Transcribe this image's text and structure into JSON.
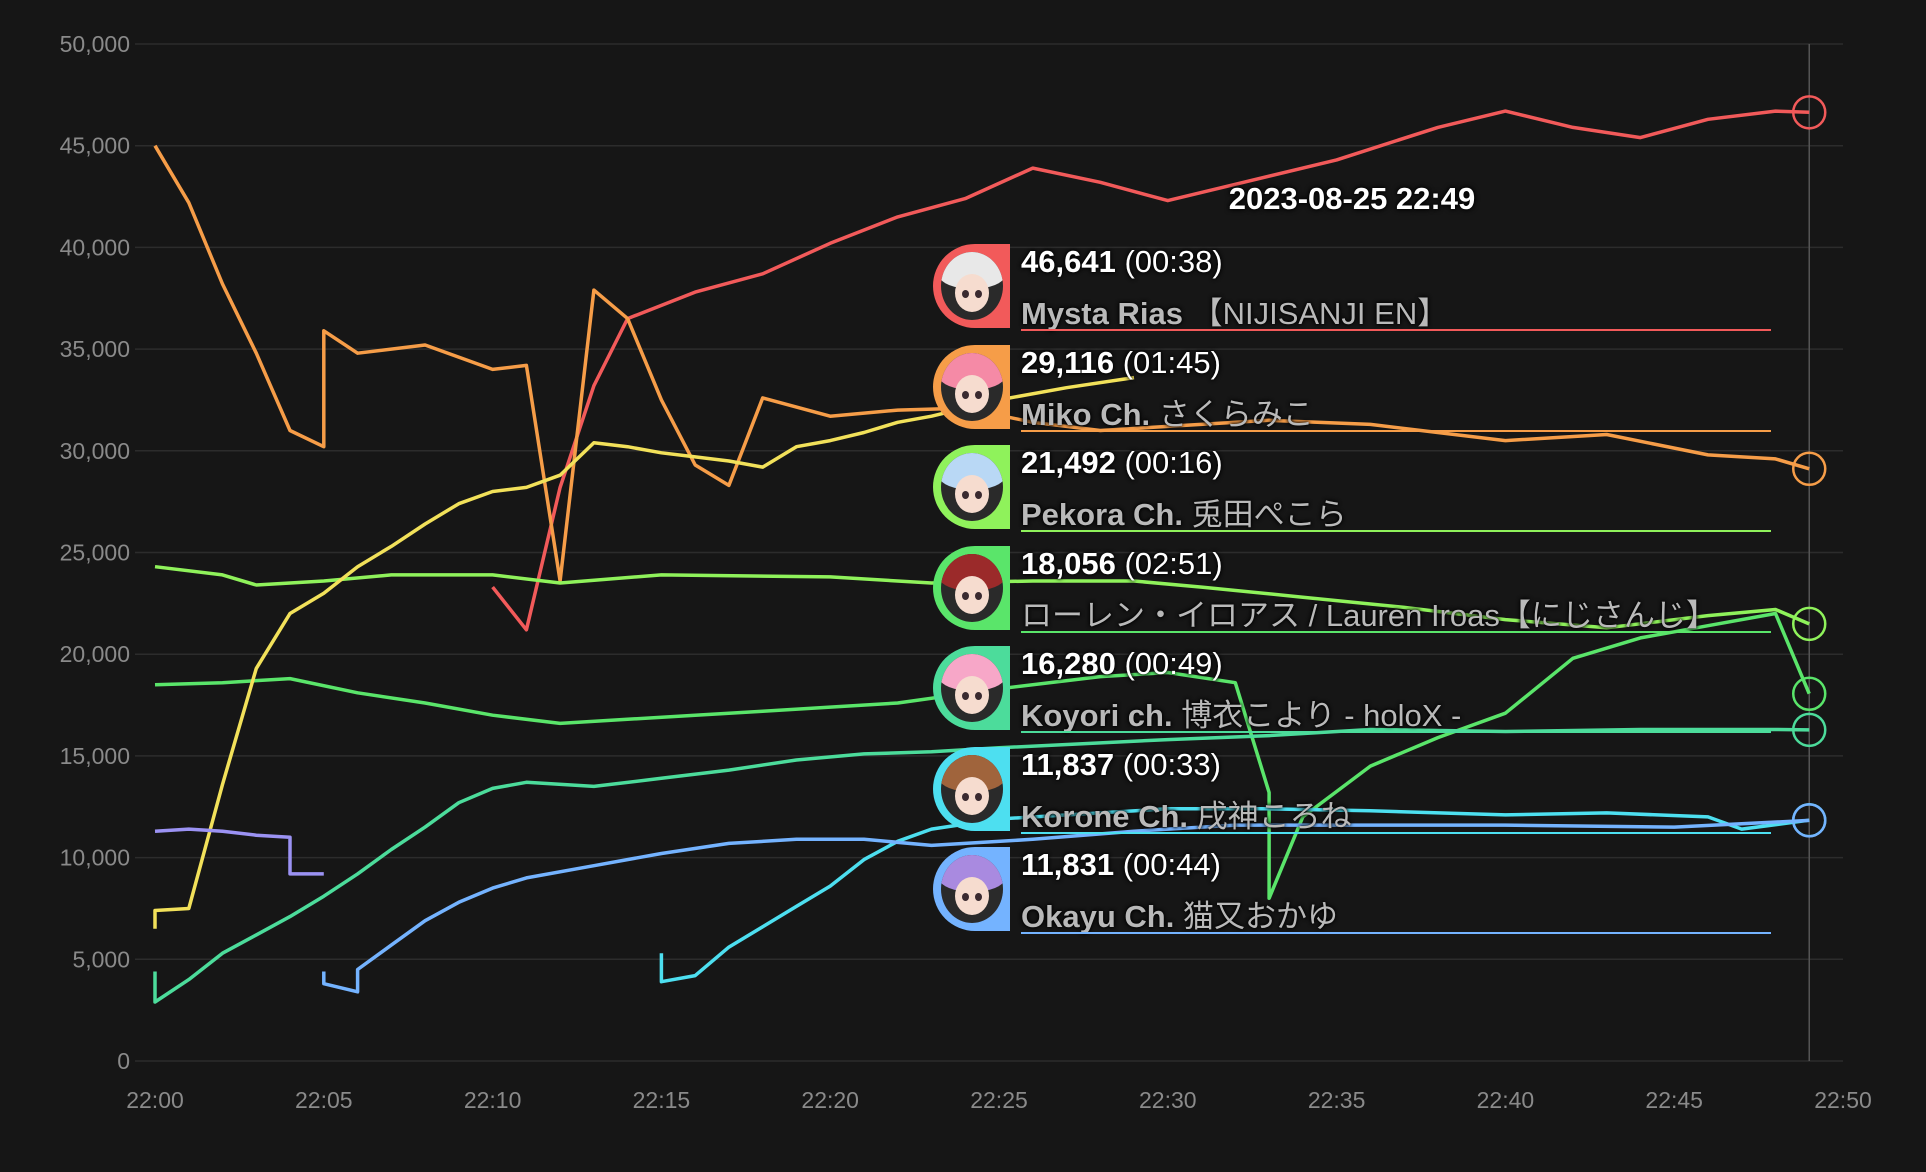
{
  "chart_data": {
    "type": "line",
    "title": "",
    "xlabel": "",
    "ylabel": "",
    "x_ticks": [
      "22:00",
      "22:05",
      "22:10",
      "22:15",
      "22:20",
      "22:25",
      "22:30",
      "22:35",
      "22:40",
      "22:45",
      "22:50"
    ],
    "xlim": [
      "22:00",
      "22:50"
    ],
    "y_ticks": [
      "0",
      "5,000",
      "10,000",
      "15,000",
      "20,000",
      "25,000",
      "30,000",
      "35,000",
      "40,000",
      "45,000",
      "50,000"
    ],
    "ylim": [
      0,
      50000
    ],
    "grid": true,
    "cursor_time": "22:49",
    "series": [
      {
        "name": "Mysta Rias 【NIJISANJI EN】",
        "color": "#f25a5a",
        "points": [
          [
            "22:10",
            23300
          ],
          [
            "22:11",
            21200
          ],
          [
            "22:12",
            28200
          ],
          [
            "22:13",
            33200
          ],
          [
            "22:14",
            36500
          ],
          [
            "22:16",
            37800
          ],
          [
            "22:18",
            38700
          ],
          [
            "22:20",
            40200
          ],
          [
            "22:22",
            41500
          ],
          [
            "22:24",
            42400
          ],
          [
            "22:26",
            43900
          ],
          [
            "22:28",
            43200
          ],
          [
            "22:30",
            42300
          ],
          [
            "22:32",
            43100
          ],
          [
            "22:35",
            44300
          ],
          [
            "22:38",
            45900
          ],
          [
            "22:40",
            46700
          ],
          [
            "22:42",
            45900
          ],
          [
            "22:44",
            45400
          ],
          [
            "22:46",
            46300
          ],
          [
            "22:48",
            46700
          ],
          [
            "22:49",
            46641
          ]
        ]
      },
      {
        "name": "Miko Ch. さくらみこ",
        "color": "#f69d48",
        "points": [
          [
            "22:00",
            45000
          ],
          [
            "22:01",
            42200
          ],
          [
            "22:02",
            38200
          ],
          [
            "22:03",
            34800
          ],
          [
            "22:04",
            31000
          ],
          [
            "22:05",
            30200
          ],
          [
            "22:05",
            35900
          ],
          [
            "22:06",
            34800
          ],
          [
            "22:08",
            35200
          ],
          [
            "22:10",
            34000
          ],
          [
            "22:11",
            34200
          ],
          [
            "22:12",
            23600
          ],
          [
            "22:13",
            37900
          ],
          [
            "22:14",
            36500
          ],
          [
            "22:15",
            32500
          ],
          [
            "22:16",
            29300
          ],
          [
            "22:17",
            28300
          ],
          [
            "22:18",
            32600
          ],
          [
            "22:20",
            31700
          ],
          [
            "22:22",
            32000
          ],
          [
            "22:24",
            32100
          ],
          [
            "22:26",
            31400
          ],
          [
            "22:28",
            31000
          ],
          [
            "22:30",
            31200
          ],
          [
            "22:33",
            31500
          ],
          [
            "22:36",
            31300
          ],
          [
            "22:40",
            30500
          ],
          [
            "22:43",
            30800
          ],
          [
            "22:46",
            29800
          ],
          [
            "22:48",
            29600
          ],
          [
            "22:49",
            29116
          ]
        ]
      },
      {
        "name": "Pekora Ch. 兎田ぺこら",
        "color": "#8ff25b",
        "points": [
          [
            "22:00",
            24300
          ],
          [
            "22:02",
            23900
          ],
          [
            "22:03",
            23400
          ],
          [
            "22:05",
            23600
          ],
          [
            "22:07",
            23900
          ],
          [
            "22:10",
            23900
          ],
          [
            "22:12",
            23500
          ],
          [
            "22:15",
            23900
          ],
          [
            "22:20",
            23800
          ],
          [
            "22:23",
            23500
          ],
          [
            "22:26",
            23600
          ],
          [
            "22:29",
            23600
          ],
          [
            "22:31",
            23300
          ],
          [
            "22:34",
            22800
          ],
          [
            "22:37",
            22300
          ],
          [
            "22:40",
            21700
          ],
          [
            "22:43",
            21300
          ],
          [
            "22:46",
            21900
          ],
          [
            "22:48",
            22200
          ],
          [
            "22:49",
            21492
          ]
        ]
      },
      {
        "name": "ローレン・イロアス / Lauren Iroas【にじさんじ】",
        "color": "#5ae56a",
        "points": [
          [
            "22:00",
            18500
          ],
          [
            "22:02",
            18600
          ],
          [
            "22:04",
            18800
          ],
          [
            "22:06",
            18100
          ],
          [
            "22:08",
            17600
          ],
          [
            "22:10",
            17000
          ],
          [
            "22:12",
            16600
          ],
          [
            "22:14",
            16800
          ],
          [
            "22:16",
            17000
          ],
          [
            "22:18",
            17200
          ],
          [
            "22:20",
            17400
          ],
          [
            "22:22",
            17600
          ],
          [
            "22:25",
            18300
          ],
          [
            "22:28",
            18900
          ],
          [
            "22:30",
            19100
          ],
          [
            "22:32",
            18600
          ],
          [
            "22:33",
            13200
          ],
          [
            "22:33",
            8000
          ],
          [
            "22:34",
            12000
          ],
          [
            "22:36",
            14500
          ],
          [
            "22:38",
            15900
          ],
          [
            "22:40",
            17100
          ],
          [
            "22:42",
            19800
          ],
          [
            "22:44",
            20800
          ],
          [
            "22:46",
            21400
          ],
          [
            "22:48",
            22000
          ],
          [
            "22:49",
            18056
          ]
        ]
      },
      {
        "name": "Koyori ch. 博衣こより - holoX -",
        "color": "#4cdc9b",
        "points": [
          [
            "22:00",
            4400
          ],
          [
            "22:00",
            2900
          ],
          [
            "22:01",
            4000
          ],
          [
            "22:02",
            5300
          ],
          [
            "22:03",
            6200
          ],
          [
            "22:04",
            7100
          ],
          [
            "22:05",
            8100
          ],
          [
            "22:06",
            9200
          ],
          [
            "22:07",
            10400
          ],
          [
            "22:08",
            11500
          ],
          [
            "22:09",
            12700
          ],
          [
            "22:10",
            13400
          ],
          [
            "22:11",
            13700
          ],
          [
            "22:13",
            13500
          ],
          [
            "22:15",
            13900
          ],
          [
            "22:17",
            14300
          ],
          [
            "22:19",
            14800
          ],
          [
            "22:21",
            15100
          ],
          [
            "22:23",
            15200
          ],
          [
            "22:25",
            15400
          ],
          [
            "22:30",
            15800
          ],
          [
            "22:33",
            16000
          ],
          [
            "22:36",
            16300
          ],
          [
            "22:40",
            16200
          ],
          [
            "22:44",
            16300
          ],
          [
            "22:48",
            16300
          ],
          [
            "22:49",
            16280
          ]
        ]
      },
      {
        "name": "Korone Ch. 戌神ころね",
        "color": "#4ddff0",
        "points": [
          [
            "22:15",
            5300
          ],
          [
            "22:15",
            3900
          ],
          [
            "22:16",
            4200
          ],
          [
            "22:17",
            5600
          ],
          [
            "22:18",
            6600
          ],
          [
            "22:19",
            7600
          ],
          [
            "22:20",
            8600
          ],
          [
            "22:21",
            9900
          ],
          [
            "22:22",
            10800
          ],
          [
            "22:23",
            11400
          ],
          [
            "22:25",
            11900
          ],
          [
            "22:28",
            12200
          ],
          [
            "22:30",
            12400
          ],
          [
            "22:33",
            12400
          ],
          [
            "22:36",
            12300
          ],
          [
            "22:40",
            12100
          ],
          [
            "22:43",
            12200
          ],
          [
            "22:46",
            12000
          ],
          [
            "22:47",
            11400
          ],
          [
            "22:49",
            11837
          ]
        ]
      },
      {
        "name": "Okayu Ch. 猫又おかゆ",
        "color": "#74b3ff",
        "points": [
          [
            "22:05",
            4400
          ],
          [
            "22:05",
            3800
          ],
          [
            "22:06",
            3400
          ],
          [
            "22:06",
            4500
          ],
          [
            "22:07",
            5700
          ],
          [
            "22:08",
            6900
          ],
          [
            "22:09",
            7800
          ],
          [
            "22:10",
            8500
          ],
          [
            "22:11",
            9000
          ],
          [
            "22:13",
            9600
          ],
          [
            "22:15",
            10200
          ],
          [
            "22:17",
            10700
          ],
          [
            "22:19",
            10900
          ],
          [
            "22:21",
            10900
          ],
          [
            "22:23",
            10600
          ],
          [
            "22:26",
            10900
          ],
          [
            "22:29",
            11300
          ],
          [
            "22:32",
            11600
          ],
          [
            "22:35",
            11600
          ],
          [
            "22:40",
            11600
          ],
          [
            "22:45",
            11500
          ],
          [
            "22:49",
            11831
          ]
        ]
      },
      {
        "name": "",
        "color": "#f2e15a",
        "points": [
          [
            "22:00",
            6500
          ],
          [
            "22:00",
            7400
          ],
          [
            "22:01",
            7500
          ],
          [
            "22:02",
            13600
          ],
          [
            "22:03",
            19300
          ],
          [
            "22:04",
            22000
          ],
          [
            "22:05",
            23000
          ],
          [
            "22:06",
            24300
          ],
          [
            "22:07",
            25300
          ],
          [
            "22:08",
            26400
          ],
          [
            "22:09",
            27400
          ],
          [
            "22:10",
            28000
          ],
          [
            "22:11",
            28200
          ],
          [
            "22:12",
            28800
          ],
          [
            "22:13",
            30400
          ],
          [
            "22:14",
            30200
          ],
          [
            "22:15",
            29900
          ],
          [
            "22:16",
            29700
          ],
          [
            "22:17",
            29500
          ],
          [
            "22:18",
            29200
          ],
          [
            "22:19",
            30200
          ],
          [
            "22:20",
            30500
          ],
          [
            "22:21",
            30900
          ],
          [
            "22:22",
            31400
          ],
          [
            "22:23",
            31700
          ],
          [
            "22:25",
            32500
          ],
          [
            "22:27",
            33100
          ],
          [
            "22:29",
            33600
          ]
        ]
      },
      {
        "name": "",
        "color": "#9b92f3",
        "points": [
          [
            "22:00",
            11300
          ],
          [
            "22:01",
            11400
          ],
          [
            "22:02",
            11300
          ],
          [
            "22:03",
            11100
          ],
          [
            "22:04",
            11000
          ],
          [
            "22:04",
            9200
          ],
          [
            "22:05",
            9200
          ]
        ]
      }
    ],
    "tooltip": {
      "date": "2023-08-25 22:49",
      "entries": [
        {
          "value": "46,641",
          "duration": "(00:38)",
          "name_bold": "Mysta Rias",
          "name_rest": " 【NIJISANJI EN】",
          "color": "#f25a5a",
          "avatar_hair": "#e8e8e8",
          "avatar_icon": "avatar-mysta-icon"
        },
        {
          "value": "29,116",
          "duration": "(01:45)",
          "name_bold": "Miko Ch.",
          "name_rest": " さくらみこ",
          "color": "#f69d48",
          "avatar_hair": "#f58aa6",
          "avatar_icon": "avatar-miko-icon"
        },
        {
          "value": "21,492",
          "duration": "(00:16)",
          "name_bold": "Pekora Ch.",
          "name_rest": " 兎田ぺこら",
          "color": "#8ff25b",
          "avatar_hair": "#b9d8f5",
          "avatar_icon": "avatar-pekora-icon"
        },
        {
          "value": "18,056",
          "duration": "(02:51)",
          "name_bold": "",
          "name_rest": "ローレン・イロアス / Lauren Iroas【にじさんじ】",
          "color": "#5ae56a",
          "avatar_hair": "#9b2a2a",
          "avatar_icon": "avatar-lauren-icon"
        },
        {
          "value": "16,280",
          "duration": "(00:49)",
          "name_bold": "Koyori ch.",
          "name_rest": " 博衣こより - holoX -",
          "color": "#4cdc9b",
          "avatar_hair": "#f7a7c8",
          "avatar_icon": "avatar-koyori-icon"
        },
        {
          "value": "11,837",
          "duration": "(00:33)",
          "name_bold": "Korone Ch.",
          "name_rest": " 戌神ころね",
          "color": "#4ddff0",
          "avatar_hair": "#a0643c",
          "avatar_icon": "avatar-korone-icon"
        },
        {
          "value": "11,831",
          "duration": "(00:44)",
          "name_bold": "Okayu Ch.",
          "name_rest": " 猫又おかゆ",
          "color": "#74b3ff",
          "avatar_hair": "#a98ae0",
          "avatar_icon": "avatar-okayu-icon"
        }
      ]
    }
  }
}
